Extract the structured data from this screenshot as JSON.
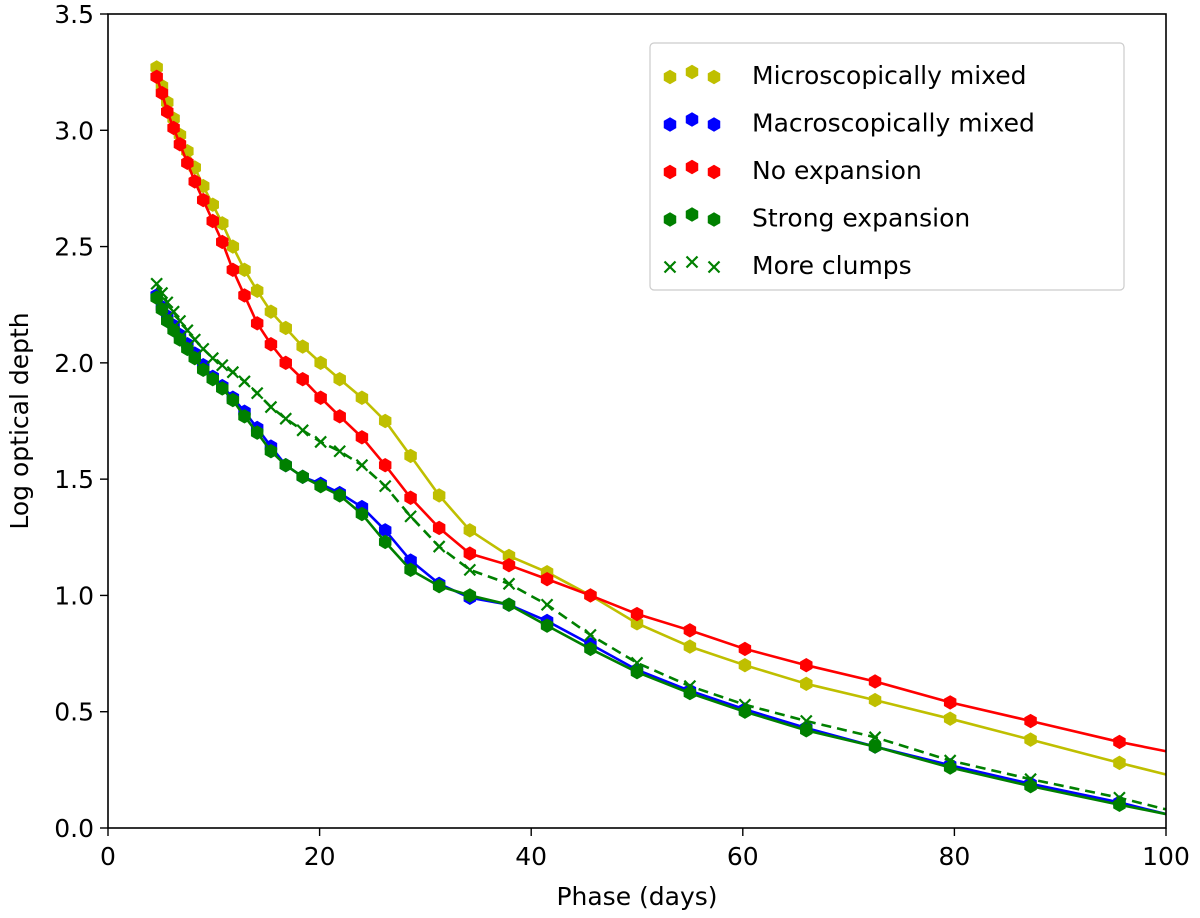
{
  "chart_data": {
    "type": "line",
    "title": "",
    "xlabel": "Phase (days)",
    "ylabel": "Log optical depth",
    "xlim": [
      0,
      100
    ],
    "ylim": [
      0,
      3.5
    ],
    "xticks": [
      0,
      20,
      40,
      60,
      80,
      100
    ],
    "yticks": [
      0.0,
      0.5,
      1.0,
      1.5,
      2.0,
      2.5,
      3.0,
      3.5
    ],
    "ytick_labels": [
      "0.0",
      "0.5",
      "1.0",
      "1.5",
      "2.0",
      "2.5",
      "3.0",
      "3.5"
    ],
    "legend_position": "top-right",
    "grid": false,
    "series": [
      {
        "name": "Microscopically mixed",
        "color": "#bfbf00",
        "marker": "hexagon",
        "line_style": "solid",
        "x": [
          4.6,
          5.1,
          5.6,
          6.2,
          6.8,
          7.5,
          8.2,
          9.0,
          9.9,
          10.8,
          11.8,
          12.9,
          14.1,
          15.4,
          16.8,
          18.4,
          20.1,
          21.9,
          24.0,
          26.2,
          28.6,
          31.3,
          34.2,
          37.9,
          41.5,
          45.6,
          50.0,
          55.0,
          60.2,
          66.0,
          72.5,
          79.6,
          87.2,
          95.6,
          100.0
        ],
        "y": [
          3.27,
          3.19,
          3.12,
          3.05,
          2.98,
          2.91,
          2.84,
          2.76,
          2.68,
          2.6,
          2.5,
          2.4,
          2.31,
          2.22,
          2.15,
          2.07,
          2.0,
          1.93,
          1.85,
          1.75,
          1.6,
          1.43,
          1.28,
          1.17,
          1.1,
          1.0,
          0.88,
          0.78,
          0.7,
          0.62,
          0.55,
          0.47,
          0.38,
          0.28,
          0.23
        ]
      },
      {
        "name": "Macroscopically mixed",
        "color": "#0000ff",
        "marker": "hexagon",
        "line_style": "solid",
        "x": [
          4.6,
          5.1,
          5.6,
          6.2,
          6.8,
          7.5,
          8.2,
          9.0,
          9.9,
          10.8,
          11.8,
          12.9,
          14.1,
          15.4,
          16.8,
          18.4,
          20.1,
          21.9,
          24.0,
          26.2,
          28.6,
          31.3,
          34.2,
          37.9,
          41.5,
          45.6,
          50.0,
          55.0,
          60.2,
          66.0,
          72.5,
          79.6,
          87.2,
          95.6,
          100.0
        ],
        "y": [
          2.29,
          2.24,
          2.2,
          2.16,
          2.12,
          2.08,
          2.04,
          1.99,
          1.94,
          1.9,
          1.85,
          1.79,
          1.72,
          1.64,
          1.56,
          1.51,
          1.48,
          1.44,
          1.38,
          1.28,
          1.15,
          1.05,
          0.99,
          0.96,
          0.89,
          0.79,
          0.68,
          0.59,
          0.51,
          0.43,
          0.35,
          0.27,
          0.19,
          0.11,
          0.06
        ]
      },
      {
        "name": "No expansion",
        "color": "#ff0000",
        "marker": "hexagon",
        "line_style": "solid",
        "x": [
          4.6,
          5.1,
          5.6,
          6.2,
          6.8,
          7.5,
          8.2,
          9.0,
          9.9,
          10.8,
          11.8,
          12.9,
          14.1,
          15.4,
          16.8,
          18.4,
          20.1,
          21.9,
          24.0,
          26.2,
          28.6,
          31.3,
          34.2,
          37.9,
          41.5,
          45.6,
          50.0,
          55.0,
          60.2,
          66.0,
          72.5,
          79.6,
          87.2,
          95.6,
          100.0
        ],
        "y": [
          3.23,
          3.16,
          3.08,
          3.01,
          2.94,
          2.86,
          2.78,
          2.7,
          2.61,
          2.52,
          2.4,
          2.29,
          2.17,
          2.08,
          2.0,
          1.93,
          1.85,
          1.77,
          1.68,
          1.56,
          1.42,
          1.29,
          1.18,
          1.13,
          1.07,
          1.0,
          0.92,
          0.85,
          0.77,
          0.7,
          0.63,
          0.54,
          0.46,
          0.37,
          0.33
        ]
      },
      {
        "name": "Strong expansion",
        "color": "#008000",
        "marker": "hexagon",
        "line_style": "solid",
        "x": [
          4.6,
          5.1,
          5.6,
          6.2,
          6.8,
          7.5,
          8.2,
          9.0,
          9.9,
          10.8,
          11.8,
          12.9,
          14.1,
          15.4,
          16.8,
          18.4,
          20.1,
          21.9,
          24.0,
          26.2,
          28.6,
          31.3,
          34.2,
          37.9,
          41.5,
          45.6,
          50.0,
          55.0,
          60.2,
          66.0,
          72.5,
          79.6,
          87.2,
          95.6,
          100.0
        ],
        "y": [
          2.28,
          2.23,
          2.18,
          2.14,
          2.1,
          2.06,
          2.02,
          1.97,
          1.93,
          1.89,
          1.84,
          1.77,
          1.7,
          1.62,
          1.56,
          1.51,
          1.47,
          1.43,
          1.35,
          1.23,
          1.11,
          1.04,
          1.0,
          0.96,
          0.87,
          0.77,
          0.67,
          0.58,
          0.5,
          0.42,
          0.35,
          0.26,
          0.18,
          0.1,
          0.06
        ]
      },
      {
        "name": "More clumps",
        "color": "#008000",
        "marker": "x",
        "line_style": "dashed",
        "x": [
          4.6,
          5.1,
          5.6,
          6.2,
          6.8,
          7.5,
          8.2,
          9.0,
          9.9,
          10.8,
          11.8,
          12.9,
          14.1,
          15.4,
          16.8,
          18.4,
          20.1,
          21.9,
          24.0,
          26.2,
          28.6,
          31.3,
          34.2,
          37.9,
          41.5,
          45.6,
          50.0,
          55.0,
          60.2,
          66.0,
          72.5,
          79.6,
          87.2,
          95.6,
          100.0
        ],
        "y": [
          2.34,
          2.3,
          2.26,
          2.22,
          2.18,
          2.14,
          2.1,
          2.06,
          2.02,
          1.99,
          1.96,
          1.92,
          1.87,
          1.81,
          1.76,
          1.71,
          1.66,
          1.62,
          1.56,
          1.47,
          1.34,
          1.21,
          1.11,
          1.05,
          0.96,
          0.83,
          0.71,
          0.61,
          0.53,
          0.46,
          0.39,
          0.29,
          0.21,
          0.13,
          0.08
        ]
      }
    ]
  }
}
